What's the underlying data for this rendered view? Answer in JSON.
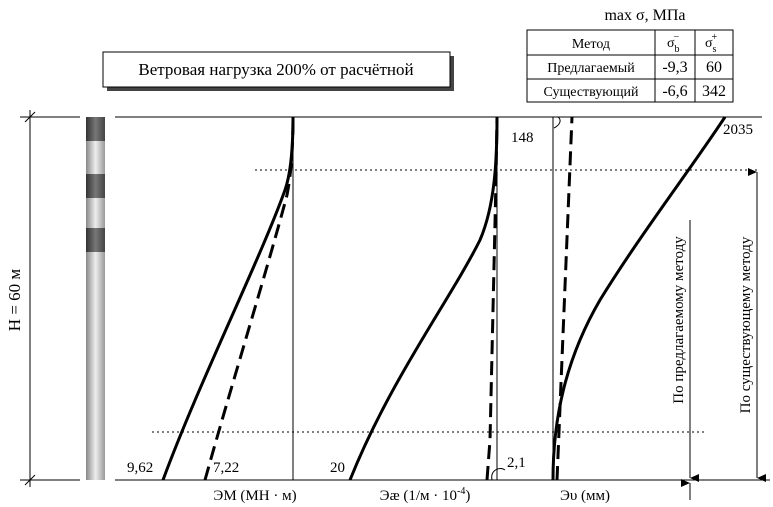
{
  "title_box": "Ветровая нагрузка 200% от расчётной",
  "table": {
    "caption": "max σ, МПа",
    "header": [
      "Метод",
      {
        "symbol": "σ",
        "sub": "b",
        "sup": "−"
      },
      {
        "symbol": "σ",
        "sub": "s",
        "sup": "+"
      }
    ],
    "rows": [
      [
        "Предлагаемый",
        "-9,3",
        "60"
      ],
      [
        "Существующий",
        "-6,6",
        "342"
      ]
    ]
  },
  "height_label": "H = 60 м",
  "panels": [
    {
      "label": "ЭM (MH · м)",
      "annotations": [
        "9,62",
        "7,22"
      ]
    },
    {
      "label": {
        "text": "Эæ (1/м · 10",
        "sup": "-4",
        "close": ")"
      },
      "annotations": [
        "20",
        "2,1"
      ]
    },
    {
      "label": "Эυ (мм)",
      "annotations": [
        "148",
        "2035"
      ]
    }
  ],
  "arrows": [
    "По предлагаемому методу",
    "По существующему методу"
  ]
}
